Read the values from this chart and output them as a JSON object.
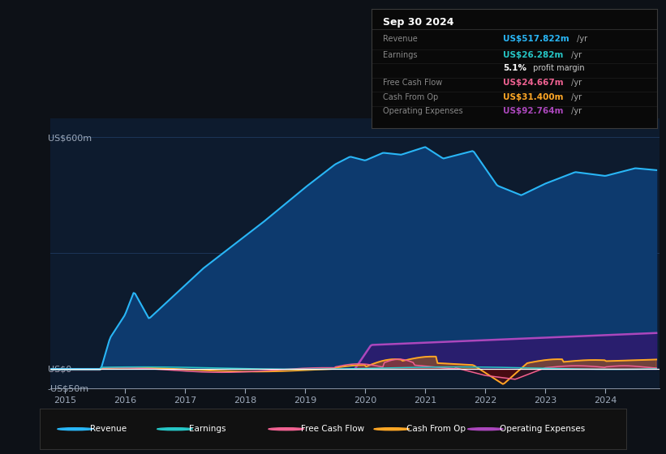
{
  "bg_color": "#0d1117",
  "plot_bg_color": "#0d1b2e",
  "ylim": [
    -50,
    650
  ],
  "yticks": [
    -50,
    0,
    600
  ],
  "ytick_labels": [
    "-US$50m",
    "US$0",
    "US$600m"
  ],
  "xlabel_ticks": [
    2015,
    2016,
    2017,
    2018,
    2019,
    2020,
    2021,
    2022,
    2023,
    2024
  ],
  "grid_color": "#1e3a5f",
  "text_color": "#9eaabb",
  "revenue_color": "#29b6f6",
  "revenue_fill": "#0d3a6e",
  "earnings_color": "#26c6c6",
  "fcf_color": "#f06292",
  "cashop_color": "#ffa726",
  "cashop_fill": "#7a5200",
  "opex_color": "#ab47bc",
  "opex_fill": "#2d1b6e",
  "zero_line_color": "#ffffff",
  "legend": [
    {
      "label": "Revenue",
      "color": "#29b6f6"
    },
    {
      "label": "Earnings",
      "color": "#26c6c6"
    },
    {
      "label": "Free Cash Flow",
      "color": "#f06292"
    },
    {
      "label": "Cash From Op",
      "color": "#ffa726"
    },
    {
      "label": "Operating Expenses",
      "color": "#ab47bc"
    }
  ],
  "info_title": "Sep 30 2024",
  "info_rows": [
    {
      "label": "Revenue",
      "value": "US$517.822m",
      "suffix": " /yr",
      "value_color": "#29b6f6"
    },
    {
      "label": "Earnings",
      "value": "US$26.282m",
      "suffix": " /yr",
      "value_color": "#26c6c6"
    },
    {
      "label": "",
      "value": "5.1%",
      "suffix": " profit margin",
      "value_color": "#ffffff",
      "bold": true
    },
    {
      "label": "Free Cash Flow",
      "value": "US$24.667m",
      "suffix": " /yr",
      "value_color": "#f06292"
    },
    {
      "label": "Cash From Op",
      "value": "US$31.400m",
      "suffix": " /yr",
      "value_color": "#ffa726"
    },
    {
      "label": "Operating Expenses",
      "value": "US$92.764m",
      "suffix": " /yr",
      "value_color": "#ab47bc"
    }
  ]
}
